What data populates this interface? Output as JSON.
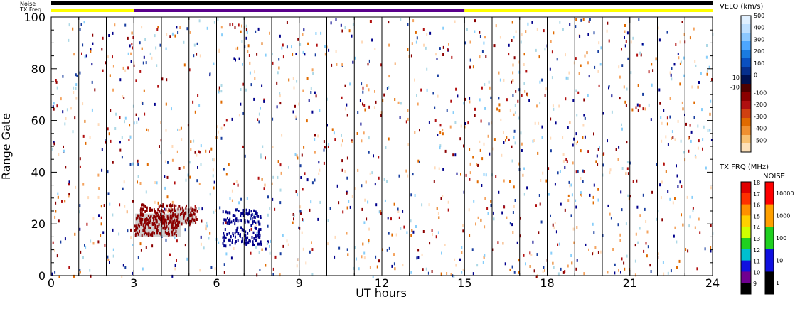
{
  "chart_data": {
    "type": "heatmap",
    "xlabel": "UT hours",
    "ylabel": "Range Gate",
    "xlim": [
      0,
      24
    ],
    "ylim": [
      0,
      100
    ],
    "x_ticks": [
      "0",
      "3",
      "6",
      "9",
      "12",
      "15",
      "18",
      "21",
      "24"
    ],
    "y_ticks": [
      "0",
      "20",
      "40",
      "60",
      "80",
      "100"
    ],
    "scan_boundaries_hours": [
      1,
      2,
      3,
      4,
      5,
      6,
      7,
      8,
      9,
      10,
      11,
      12,
      13,
      14,
      15,
      16,
      17,
      18,
      19,
      20,
      21,
      22,
      23
    ],
    "status_bars": {
      "noise_label": "Noise",
      "txfreq_label": "TX Freq",
      "noise_color": "#000000",
      "txfreq_segments": [
        {
          "start": 0,
          "end": 3,
          "color": "#ffff00"
        },
        {
          "start": 3,
          "end": 15,
          "color": "#5a008c"
        },
        {
          "start": 15,
          "end": 24,
          "color": "#ffff00"
        }
      ]
    },
    "echo_clusters": [
      {
        "x0": 3.0,
        "x1": 4.6,
        "y0": 16,
        "y1": 24,
        "color": "#8b0000",
        "note": "ground scatter grey region with red echoes"
      },
      {
        "x0": 3.2,
        "x1": 5.3,
        "y0": 20,
        "y1": 28,
        "color": "#8b0000"
      },
      {
        "x0": 6.2,
        "x1": 7.6,
        "y0": 12,
        "y1": 26,
        "color": "#00008b"
      }
    ],
    "velocity_colorbar": {
      "title": "VELO (km/s)",
      "labels": [
        "500",
        "400",
        "300",
        "200",
        "100",
        "0",
        "10",
        "-10",
        "-100",
        "-200",
        "-300",
        "-400",
        "-500"
      ],
      "colors": [
        "#e0f0ff",
        "#bfe0ff",
        "#8cc8ff",
        "#4da6ff",
        "#1a7be0",
        "#0a50c0",
        "#062f8c",
        "#00104f",
        "#4f0000",
        "#8b0000",
        "#b01010",
        "#d04010",
        "#e06a00",
        "#f09030",
        "#f8c070",
        "#fde0b8"
      ]
    },
    "txfreq_colorbar": {
      "title": "TX FRQ (MHz)",
      "labels": [
        "18",
        "17",
        "16",
        "15",
        "14",
        "13",
        "12",
        "11",
        "10",
        "9"
      ],
      "colors": [
        "#e00000",
        "#ff3000",
        "#ff9000",
        "#ffd000",
        "#d0ff00",
        "#20d020",
        "#00c0d0",
        "#1010e0",
        "#700090",
        "#000000"
      ]
    },
    "noise_colorbar": {
      "title": "NOISE",
      "labels": [
        "10000",
        "1000",
        "100",
        "10",
        "1"
      ],
      "colors": [
        "#ff0000",
        "#ffa000",
        "#20d020",
        "#1010e0",
        "#000000"
      ]
    },
    "velocity_scatter_colors": [
      "#00008b",
      "#1a3fa0",
      "#8b0000",
      "#b01010",
      "#e06a00",
      "#f4a460",
      "#87cefa",
      "#add8e6",
      "#ffdab9"
    ]
  }
}
